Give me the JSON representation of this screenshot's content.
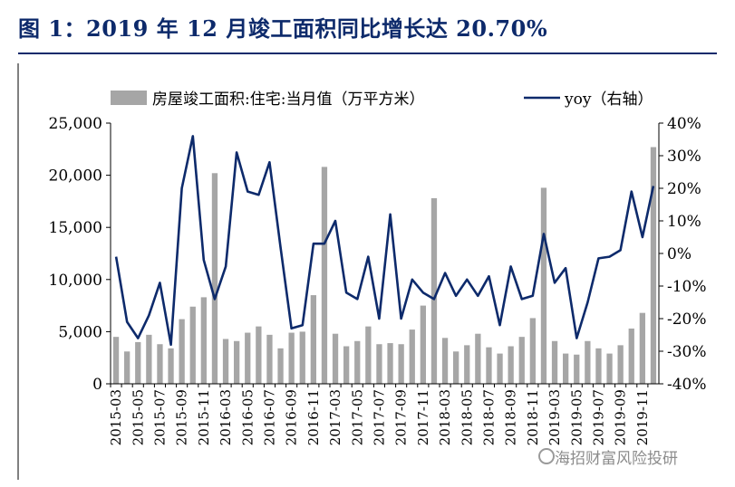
{
  "title": "图 1：2019 年 12 月竣工面积同比增长达 20.70%",
  "watermark": "海招财富风险投研",
  "colors": {
    "title": "#0d2a6b",
    "bar": "#a6a6a6",
    "line": "#0d2a6b",
    "axis": "#000000"
  },
  "chart_data": {
    "type": "bar+line",
    "legend": {
      "position": "top",
      "entries": [
        "房屋竣工面积:住宅:当月值（万平方米）",
        "yoy（右轴）"
      ]
    },
    "left_axis": {
      "ylim": [
        0,
        25000
      ],
      "ticks": [
        "0",
        "5,000",
        "10,000",
        "15,000",
        "20,000",
        "25,000"
      ],
      "tick_values": [
        0,
        5000,
        10000,
        15000,
        20000,
        25000
      ]
    },
    "right_axis": {
      "ylim": [
        -40,
        40
      ],
      "ticks": [
        "-40%",
        "-30%",
        "-20%",
        "-10%",
        "0%",
        "10%",
        "20%",
        "30%",
        "40%"
      ],
      "tick_values": [
        -40,
        -30,
        -20,
        -10,
        0,
        10,
        20,
        30,
        40
      ]
    },
    "x_tick_labels": [
      "2015-03",
      "2015-05",
      "2015-07",
      "2015-09",
      "2015-11",
      "2016-03",
      "2016-05",
      "2016-07",
      "2016-09",
      "2016-11",
      "2017-03",
      "2017-05",
      "2017-07",
      "2017-09",
      "2017-11",
      "2018-03",
      "2018-05",
      "2018-07",
      "2018-09",
      "2018-11",
      "2019-03",
      "2019-05",
      "2019-07",
      "2019-09",
      "2019-11"
    ],
    "categories": [
      "2015-03",
      "2015-04",
      "2015-05",
      "2015-06",
      "2015-07",
      "2015-08",
      "2015-09",
      "2015-10",
      "2015-11",
      "2015-12",
      "2016-03",
      "2016-04",
      "2016-05",
      "2016-06",
      "2016-07",
      "2016-08",
      "2016-09",
      "2016-10",
      "2016-11",
      "2016-12",
      "2017-03",
      "2017-04",
      "2017-05",
      "2017-06",
      "2017-07",
      "2017-08",
      "2017-09",
      "2017-10",
      "2017-11",
      "2017-12",
      "2018-03",
      "2018-04",
      "2018-05",
      "2018-06",
      "2018-07",
      "2018-08",
      "2018-09",
      "2018-10",
      "2018-11",
      "2018-12",
      "2019-03",
      "2019-04",
      "2019-05",
      "2019-06",
      "2019-07",
      "2019-08",
      "2019-09",
      "2019-10",
      "2019-11",
      "2019-12"
    ],
    "series": [
      {
        "name": "房屋竣工面积:住宅:当月值（万平方米）",
        "type": "bar",
        "axis": "left",
        "values": [
          4500,
          3100,
          4000,
          4700,
          3800,
          3400,
          6200,
          7400,
          8300,
          20200,
          4300,
          4100,
          4900,
          5500,
          4700,
          3400,
          4900,
          5000,
          8500,
          20800,
          4800,
          3600,
          4100,
          5500,
          3800,
          3900,
          3800,
          5200,
          7500,
          17800,
          4400,
          3100,
          3700,
          4800,
          3500,
          2900,
          3600,
          4500,
          6300,
          18800,
          4100,
          2900,
          2800,
          4100,
          3400,
          2900,
          3700,
          5300,
          6800,
          22700
        ]
      },
      {
        "name": "yoy（右轴）",
        "type": "line",
        "axis": "right",
        "values": [
          -1,
          -21,
          -26,
          -19,
          -9,
          -28,
          20,
          36,
          -2,
          -14,
          -4,
          31,
          19,
          18,
          28,
          2,
          -23,
          -22,
          3,
          3,
          10,
          -12,
          -14,
          -1,
          -20,
          12,
          -20,
          -8,
          -12,
          -14,
          -6,
          -13,
          -8,
          -13,
          -7,
          -22,
          -4,
          -14,
          -13,
          6,
          -9,
          -4.5,
          -26,
          -15,
          -1.5,
          -1,
          1,
          19,
          5,
          20.7
        ]
      }
    ]
  }
}
